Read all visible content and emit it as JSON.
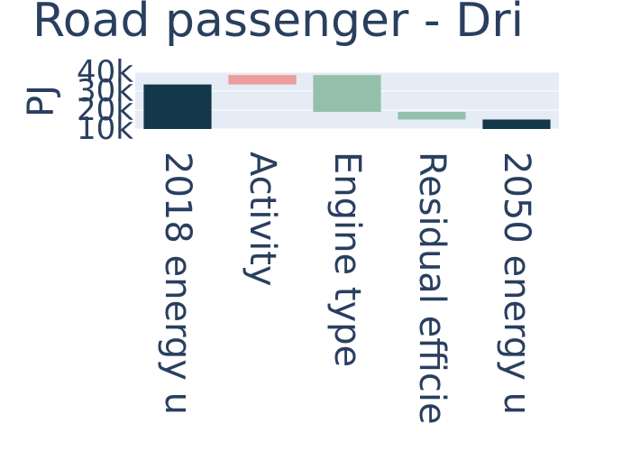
{
  "chart_data": {
    "type": "waterfall",
    "title": "Road passenger - Dri",
    "ylabel": "PJ",
    "ylim": [
      10000,
      40000
    ],
    "yticks": [
      10000,
      20000,
      30000,
      40000
    ],
    "ytick_labels": [
      "10k",
      "20k",
      "30k",
      "40k"
    ],
    "categories": [
      "2018 energy u",
      "Activity",
      "Engine type",
      "Residual efficie",
      "2050 energy u"
    ],
    "bars": [
      {
        "category": "2018 energy u",
        "kind": "total",
        "base": 10000,
        "top": 33500
      },
      {
        "category": "Activity",
        "kind": "increase",
        "base": 33500,
        "top": 38500
      },
      {
        "category": "Engine type",
        "kind": "decrease",
        "base": 38500,
        "top": 19000
      },
      {
        "category": "Residual efficie",
        "kind": "decrease",
        "base": 19000,
        "top": 15000
      },
      {
        "category": "2050 energy u",
        "kind": "total",
        "base": 10000,
        "top": 15000
      }
    ],
    "colors": {
      "total": "#12384a",
      "increase": "#eb9c9b",
      "decrease": "#94c0aa",
      "plot_background": "#e5ecf6",
      "grid": "#ffffff",
      "text": "#2a3f5f"
    }
  }
}
